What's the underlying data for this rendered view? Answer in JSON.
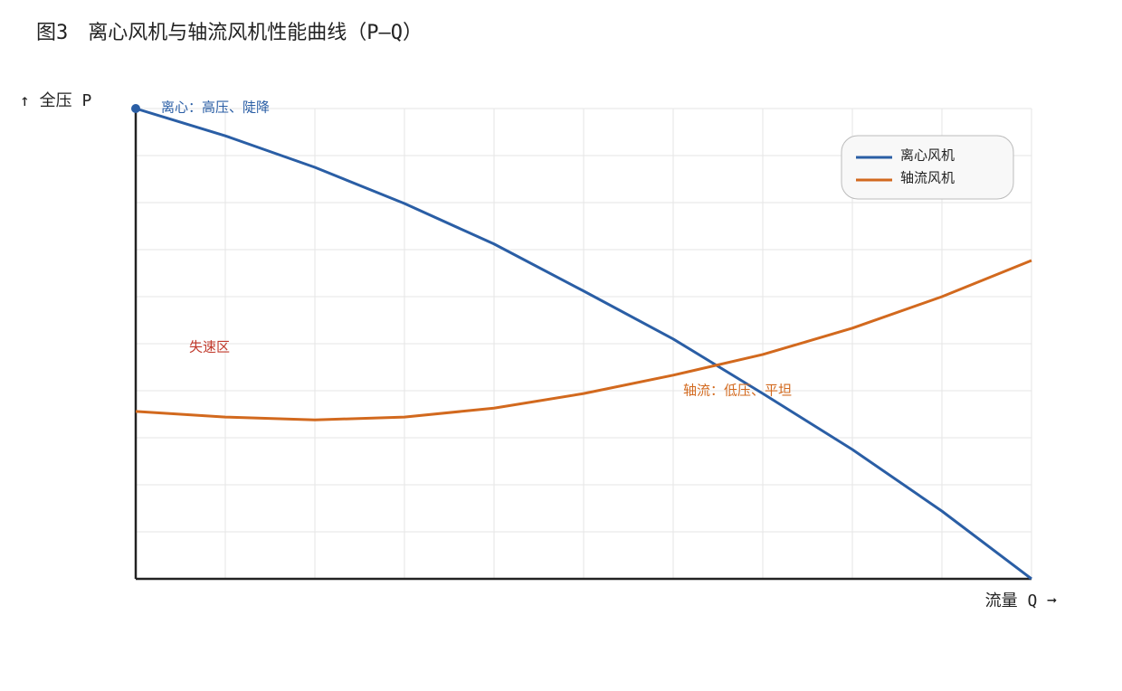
{
  "chart_data": {
    "type": "line",
    "title": "图3　离心风机与轴流风机性能曲线（P–Q）",
    "y_label": "↑ 全压 P",
    "x_label": "流量 Q ➞",
    "x": [
      0,
      1,
      2,
      3,
      4,
      5,
      6,
      7,
      8,
      9,
      10
    ],
    "xlim": [
      0,
      10
    ],
    "ylim": [
      0,
      10
    ],
    "xticks": [
      0,
      1,
      2,
      3,
      4,
      5,
      6,
      7,
      8,
      9,
      10
    ],
    "yticks": [
      0,
      1,
      2,
      3,
      4,
      5,
      6,
      7,
      8,
      9,
      10
    ],
    "grid": true,
    "legend": "upper right",
    "series": [
      {
        "name": "离心风机",
        "color": "#2a5ea5",
        "values": [
          10,
          9.42,
          8.75,
          7.98,
          7.12,
          6.12,
          5.1,
          3.94,
          2.75,
          1.44,
          0
        ]
      },
      {
        "name": "轴流风机",
        "color": "#d2691e",
        "values": [
          3.56,
          3.44,
          3.38,
          3.44,
          3.63,
          3.94,
          4.33,
          4.77,
          5.33,
          6.0,
          6.77
        ]
      }
    ],
    "annotations": [
      {
        "text": "离心：高压、陡降",
        "color": "#2a5ea5"
      },
      {
        "text": "失速区",
        "color": "#c0392b"
      },
      {
        "text": "轴流：低压、平坦",
        "color": "#d2691e"
      }
    ]
  }
}
